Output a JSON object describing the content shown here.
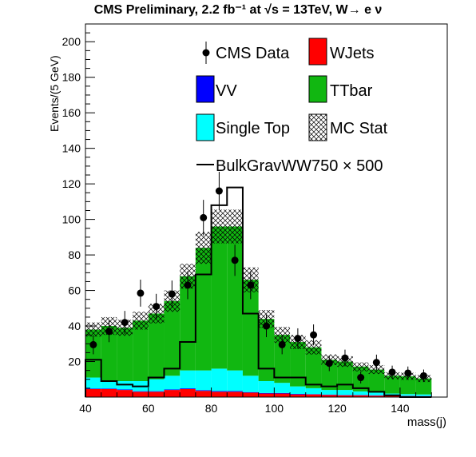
{
  "chart_data": {
    "type": "bar",
    "title": "CMS Preliminary, 2.2 fb⁻¹ at √s = 13TeV, W→ e ν",
    "xlabel": "mass(j)",
    "ylabel": "Events/(5 GeV)",
    "xlim": [
      40,
      155
    ],
    "ylim": [
      0,
      210
    ],
    "xticks": [
      "40",
      "60",
      "80",
      "100",
      "120",
      "140"
    ],
    "yticks": [
      "20",
      "40",
      "60",
      "80",
      "100",
      "120",
      "140",
      "160",
      "180",
      "200"
    ],
    "bin_edges": [
      40,
      45,
      50,
      55,
      60,
      65,
      70,
      75,
      80,
      85,
      90,
      95,
      100,
      105,
      110,
      115,
      120,
      125,
      130,
      135,
      140,
      145,
      150
    ],
    "series": [
      {
        "name": "WJets",
        "color": "#ff0000",
        "values": [
          4.5,
          4.5,
          4,
          3,
          3,
          4,
          4.5,
          3.5,
          3,
          3,
          2.5,
          2,
          2,
          1.5,
          1.5,
          1.2,
          1,
          1,
          0.8,
          0.8,
          0.6,
          0.5
        ]
      },
      {
        "name": "VV",
        "color": "#0000ff",
        "values": [
          0.3,
          0.3,
          0.3,
          0.3,
          0.3,
          0.3,
          0.4,
          0.4,
          0.4,
          0.4,
          0.3,
          0.3,
          0.3,
          0.3,
          0.2,
          0.2,
          0.2,
          0.2,
          0.2,
          0.2,
          0.1,
          0.1
        ]
      },
      {
        "name": "Single Top",
        "color": "#00ffff",
        "values": [
          6.2,
          4.2,
          4.7,
          5.7,
          6.7,
          7.7,
          10.1,
          11.1,
          12.6,
          11.6,
          9.2,
          6.7,
          5.7,
          4.2,
          3.3,
          2.6,
          2.8,
          2.0,
          1.5,
          1.0,
          1.0,
          0.9
        ]
      },
      {
        "name": "TTbar",
        "color": "#11b711",
        "values": [
          27,
          31,
          30,
          34,
          37,
          42,
          53,
          69,
          80,
          81,
          54,
          35,
          27,
          25,
          23,
          17,
          16,
          14,
          13,
          10,
          10,
          9
        ]
      }
    ],
    "mc_total": [
      38,
      40,
      39,
      43,
      47,
      54,
      68,
      84,
      96,
      96,
      66,
      44,
      35,
      31,
      28,
      21,
      20,
      17,
      15.5,
      12,
      11.7,
      10.5
    ],
    "mc_stat_uncertainty": [
      4,
      5,
      4.5,
      5,
      5.5,
      6,
      7,
      9,
      9.5,
      9.5,
      7,
      5,
      4.5,
      4,
      4,
      3,
      3,
      2.5,
      2.5,
      2,
      2,
      2
    ],
    "mc_stat_label": "MC Stat",
    "signal": {
      "name": "BulkGravWW750 × 500",
      "values": [
        21,
        9,
        7,
        6,
        11,
        16,
        31,
        69,
        108,
        118,
        47,
        16,
        11,
        11,
        7,
        6,
        7,
        5,
        3,
        1,
        0,
        0
      ]
    },
    "data": {
      "name": "CMS Data",
      "x": [
        42.5,
        47.5,
        52.5,
        57.5,
        62.5,
        67.5,
        72.5,
        77.5,
        82.5,
        87.5,
        92.5,
        97.5,
        102.5,
        107.5,
        112.5,
        117.5,
        122.5,
        127.5,
        132.5,
        137.5,
        142.5,
        147.5
      ],
      "y": [
        29.5,
        37,
        42,
        58.5,
        51,
        58,
        63,
        101,
        116,
        77,
        63,
        40,
        29.5,
        33,
        35,
        19,
        22,
        11,
        19.5,
        14,
        13.5,
        12
      ],
      "err": [
        5.4,
        6.1,
        6.5,
        7.6,
        7.1,
        7.6,
        7.9,
        10,
        10.8,
        8.8,
        7.9,
        6.3,
        5.4,
        5.7,
        5.9,
        4.4,
        4.7,
        3.3,
        4.4,
        3.7,
        3.7,
        3.5
      ]
    }
  }
}
